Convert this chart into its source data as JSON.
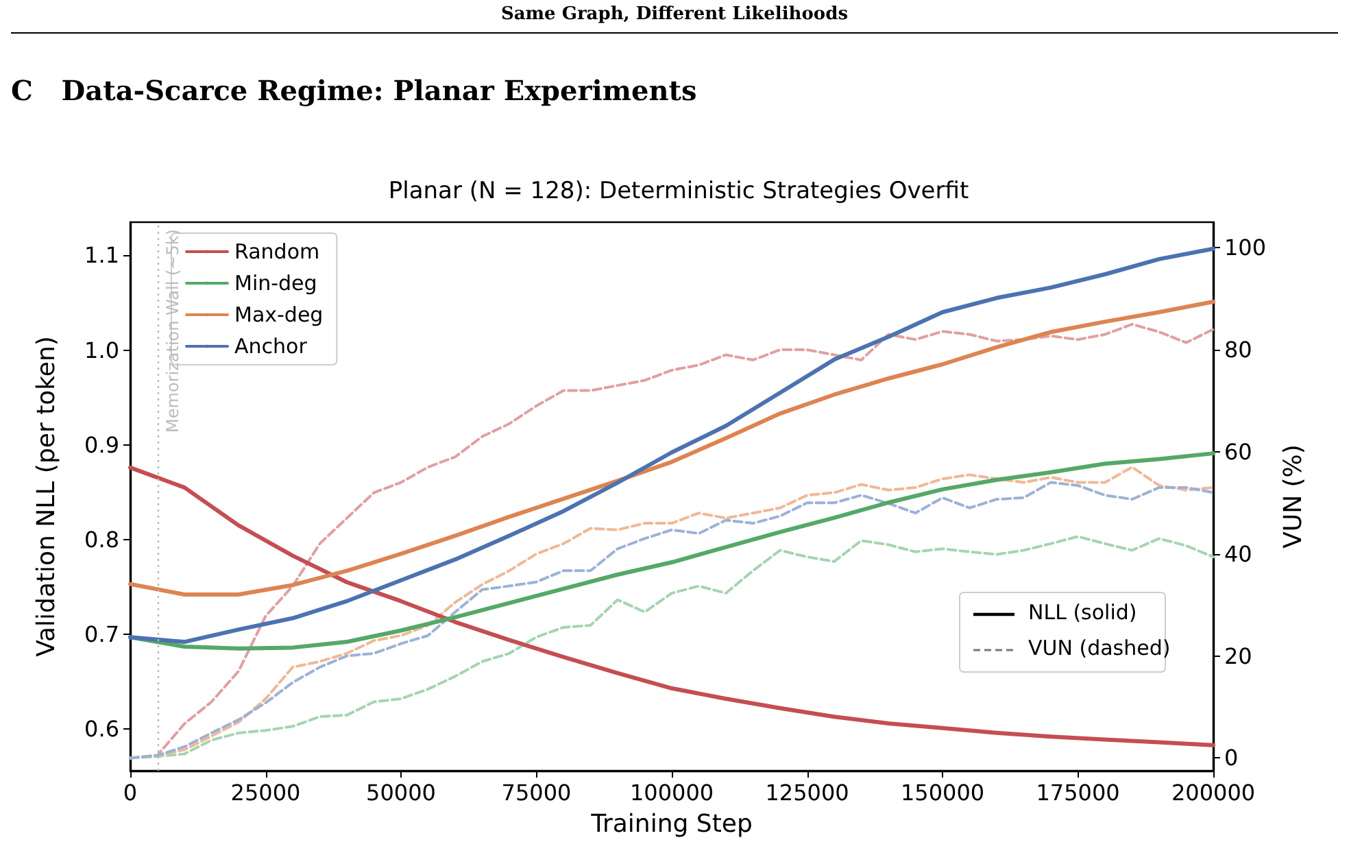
{
  "chart_data": {
    "type": "line",
    "title": "Planar (N = 128): Deterministic Strategies Overfit",
    "xlabel": "Training Step",
    "ylabel": "Validation NLL (per token)",
    "y2label": "VUN (%)",
    "annotations": [
      "Same Graph, Different Likelihoods",
      "C   Data-Scarce Regime: Planar Experiments",
      "NLL (solid)",
      "VUN (dashed)"
    ],
    "x": [
      0,
      10000,
      20000,
      30000,
      40000,
      50000,
      60000,
      70000,
      80000,
      90000,
      100000,
      110000,
      120000,
      130000,
      140000,
      150000,
      160000,
      170000,
      180000,
      190000,
      200000
    ],
    "series": [
      {
        "name": "Random",
        "color": "#c44e52",
        "line_style": "solid",
        "values": [
          0.876,
          0.855,
          0.815,
          0.783,
          0.755,
          0.735,
          0.713,
          0.694,
          0.676,
          0.659,
          0.643,
          0.632,
          0.622,
          0.613,
          0.606,
          0.601,
          0.596,
          0.592,
          0.589,
          0.586,
          0.583
        ]
      },
      {
        "name": "Min-deg",
        "color": "#55a868",
        "line_style": "solid",
        "values": [
          0.697,
          0.687,
          0.685,
          0.686,
          0.692,
          0.704,
          0.718,
          0.733,
          0.748,
          0.763,
          0.776,
          0.792,
          0.808,
          0.823,
          0.839,
          0.853,
          0.863,
          0.871,
          0.88,
          0.885,
          0.891
        ]
      },
      {
        "name": "Max-deg",
        "color": "#dd8452",
        "line_style": "solid",
        "values": [
          0.753,
          0.742,
          0.742,
          0.752,
          0.767,
          0.785,
          0.804,
          0.824,
          0.843,
          0.862,
          0.882,
          0.907,
          0.933,
          0.953,
          0.97,
          0.985,
          1.003,
          1.019,
          1.03,
          1.04,
          1.051
        ]
      },
      {
        "name": "Anchor",
        "color": "#4c72b0",
        "line_style": "solid",
        "values": [
          0.697,
          0.692,
          0.705,
          0.717,
          0.735,
          0.757,
          0.779,
          0.804,
          0.83,
          0.86,
          0.892,
          0.92,
          0.955,
          0.99,
          1.014,
          1.04,
          1.055,
          1.066,
          1.08,
          1.096,
          1.107
        ]
      },
      {
        "color": "#e0a0a2",
        "line_style": "dashed",
        "axis": "y2",
        "x": [
          0,
          5000,
          10000,
          15000,
          20000,
          25000,
          30000,
          35000,
          40000,
          45000,
          50000,
          55000,
          60000,
          65000,
          70000,
          75000,
          80000,
          85000,
          90000,
          95000,
          100000,
          105000,
          110000,
          115000,
          120000,
          125000,
          130000,
          135000,
          140000,
          145000,
          150000,
          155000,
          160000,
          165000,
          170000,
          175000,
          180000,
          185000,
          190000,
          195000,
          200000
        ],
        "values": [
          0,
          0.5,
          6.7,
          11,
          17,
          27.8,
          33.7,
          42,
          47,
          52,
          54,
          57,
          59,
          63,
          65.5,
          69,
          72,
          72,
          73,
          74,
          76,
          77,
          79,
          78,
          80,
          80,
          79,
          78,
          83,
          82,
          83.6,
          83,
          81.7,
          82,
          82.7,
          82,
          83,
          85,
          83.5,
          81.4,
          84
        ]
      },
      {
        "color": "#a6d4b0",
        "line_style": "dashed",
        "axis": "y2",
        "x": [
          0,
          5000,
          10000,
          15000,
          20000,
          25000,
          30000,
          35000,
          40000,
          45000,
          50000,
          55000,
          60000,
          65000,
          70000,
          75000,
          80000,
          85000,
          90000,
          95000,
          100000,
          105000,
          110000,
          115000,
          120000,
          125000,
          130000,
          135000,
          140000,
          145000,
          150000,
          155000,
          160000,
          165000,
          170000,
          175000,
          180000,
          185000,
          190000,
          195000,
          200000
        ],
        "values": [
          0,
          0.3,
          0.8,
          3.5,
          4.9,
          5.4,
          6.2,
          8.1,
          8.4,
          11,
          11.6,
          13.5,
          16,
          18.9,
          20.5,
          23.7,
          25.6,
          26,
          31,
          28.6,
          32.3,
          33.7,
          32.3,
          36.7,
          40.7,
          39.4,
          38.5,
          42.6,
          41.8,
          40.4,
          41,
          40.4,
          39.9,
          40.7,
          42,
          43.4,
          42,
          40.7,
          43,
          41.6,
          39.4
        ]
      },
      {
        "color": "#f0b896",
        "line_style": "dashed",
        "axis": "y2",
        "x": [
          0,
          5000,
          10000,
          15000,
          20000,
          25000,
          30000,
          35000,
          40000,
          45000,
          50000,
          55000,
          60000,
          65000,
          70000,
          75000,
          80000,
          85000,
          90000,
          95000,
          100000,
          105000,
          110000,
          115000,
          120000,
          125000,
          130000,
          135000,
          140000,
          145000,
          150000,
          155000,
          160000,
          165000,
          170000,
          175000,
          180000,
          185000,
          190000,
          195000,
          200000
        ],
        "values": [
          0,
          0.5,
          1.6,
          4.3,
          7,
          11.6,
          17.8,
          18.9,
          20.5,
          23,
          24,
          26,
          30.5,
          34,
          36.7,
          40,
          42,
          45,
          44.7,
          46,
          46,
          48,
          47,
          48,
          49,
          51.5,
          52,
          53.6,
          52.5,
          53,
          54.7,
          55.5,
          54.7,
          54,
          55,
          54,
          54,
          57,
          53.4,
          52.5,
          53
        ]
      },
      {
        "color": "#9cb2d6",
        "line_style": "dashed",
        "axis": "y2",
        "x": [
          0,
          5000,
          10000,
          15000,
          20000,
          25000,
          30000,
          35000,
          40000,
          45000,
          50000,
          55000,
          60000,
          65000,
          70000,
          75000,
          80000,
          85000,
          90000,
          95000,
          100000,
          105000,
          110000,
          115000,
          120000,
          125000,
          130000,
          135000,
          140000,
          145000,
          150000,
          155000,
          160000,
          165000,
          170000,
          175000,
          180000,
          185000,
          190000,
          195000,
          200000
        ],
        "values": [
          0,
          0.5,
          2.2,
          4.9,
          7.5,
          10.8,
          14.8,
          17.8,
          20,
          20.5,
          22.4,
          24,
          28.6,
          33,
          33.7,
          34.5,
          36.7,
          36.7,
          41,
          43,
          44.7,
          44,
          46.6,
          46,
          47.4,
          50,
          50,
          51.5,
          49.9,
          48,
          51,
          49,
          50.7,
          51,
          54,
          53.4,
          51.5,
          50.7,
          53,
          53,
          52
        ]
      }
    ],
    "xlim": [
      0,
      200000
    ],
    "xticks": [
      0,
      25000,
      50000,
      75000,
      100000,
      125000,
      150000,
      175000,
      200000
    ],
    "ylim": [
      0.556,
      1.135
    ],
    "yticks": [
      0.6,
      0.7,
      0.8,
      0.9,
      {
        "value": 1,
        "label": "1.0"
      },
      1.1
    ],
    "y2lim": [
      -2.5,
      105
    ],
    "y2ticks": [
      0,
      20,
      40,
      60,
      80,
      100
    ],
    "ref_lines": [
      {
        "axis": "x",
        "value": 5000,
        "label": "Memorization Wall (~5k)",
        "color": "#bbbbbb",
        "line_style": "dotted"
      }
    ],
    "legend": "top left",
    "grid": false,
    "marker": "none"
  }
}
